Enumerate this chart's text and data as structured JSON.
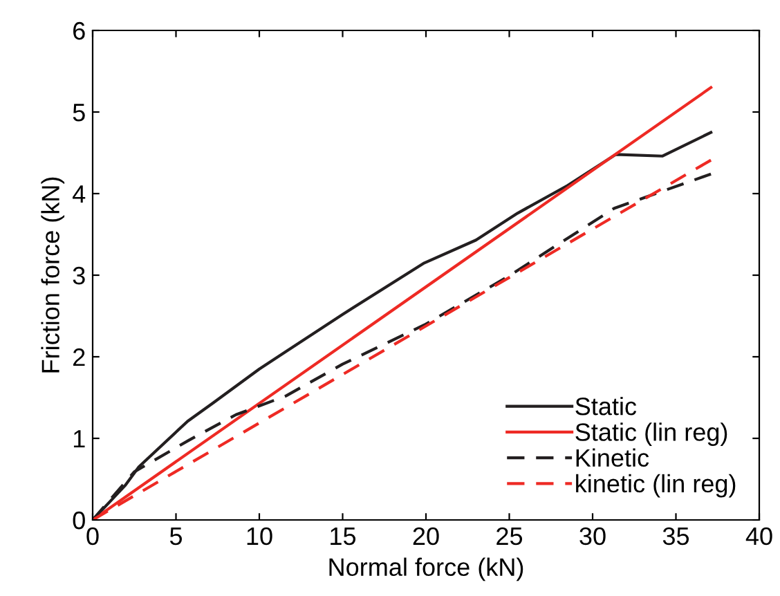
{
  "chart_data": {
    "type": "line",
    "xlabel": "Normal force (kN)",
    "ylabel": "Friction force (kN)",
    "xlim": [
      0,
      40
    ],
    "ylim": [
      0,
      6
    ],
    "xticks": [
      0,
      5,
      10,
      15,
      20,
      25,
      30,
      35,
      40
    ],
    "yticks": [
      0,
      1,
      2,
      3,
      4,
      5,
      6
    ],
    "grid": false,
    "legend": "bottom right",
    "marker": "none",
    "series": [
      {
        "name": "Static",
        "color": "#231f20",
        "line_style": "solid",
        "x": [
          0,
          1.94,
          2.77,
          5.7,
          7.2,
          10,
          15,
          19.9,
          23,
          25.5,
          28.5,
          31.4,
          34.2,
          37.1
        ],
        "values": [
          0,
          0.42,
          0.65,
          1.21,
          1.43,
          1.85,
          2.52,
          3.15,
          3.43,
          3.76,
          4.1,
          4.48,
          4.46,
          4.75
        ]
      },
      {
        "name": "Static (lin reg)",
        "color": "#ee2a24",
        "line_style": "solid",
        "x": [
          0,
          37.1
        ],
        "values": [
          0,
          5.3
        ]
      },
      {
        "name": "Kinetic",
        "color": "#231f20",
        "line_style": "dashed",
        "x": [
          0,
          2.5,
          5.8,
          8.6,
          11.6,
          15,
          19.9,
          24.9,
          31.3,
          37.1
        ],
        "values": [
          0,
          0.59,
          0.98,
          1.29,
          1.52,
          1.91,
          2.39,
          2.98,
          3.82,
          4.24
        ]
      },
      {
        "name": "kinetic (lin reg)",
        "color": "#ee2a24",
        "line_style": "dashed",
        "x": [
          0,
          37.1
        ],
        "values": [
          0,
          4.41
        ]
      }
    ]
  }
}
